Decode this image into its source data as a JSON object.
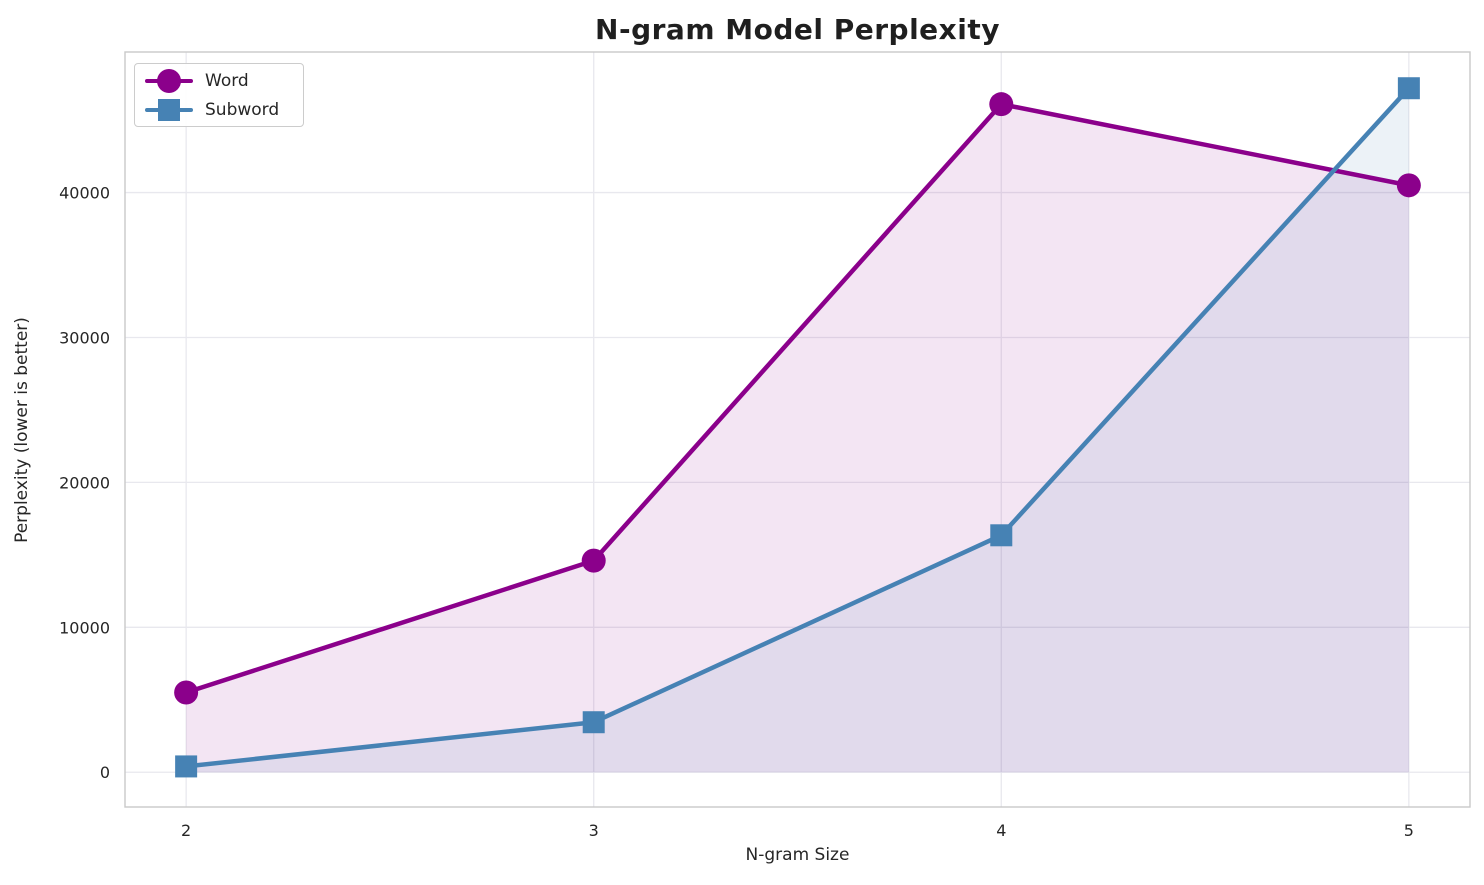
{
  "chart_data": {
    "type": "line",
    "title": "N-gram Model Perplexity",
    "xlabel": "N-gram Size",
    "ylabel": "Perplexity (lower is better)",
    "x": [
      2,
      3,
      4,
      5
    ],
    "series": [
      {
        "name": "Word",
        "marker": "circle",
        "color": "#8B008B",
        "values": [
          5500,
          14600,
          46100,
          40500
        ]
      },
      {
        "name": "Subword",
        "marker": "square",
        "color": "#4682B4",
        "values": [
          400,
          3450,
          16350,
          47200
        ]
      }
    ],
    "fill_to_zero": true,
    "fill_opacity": 0.1,
    "xticks": [
      "2",
      "3",
      "4",
      "5"
    ],
    "xtick_values": [
      2,
      3,
      4,
      5
    ],
    "yticks": [
      "0",
      "10000",
      "20000",
      "30000",
      "40000"
    ],
    "ytick_values": [
      0,
      10000,
      20000,
      30000,
      40000
    ],
    "xlim": [
      1.85,
      5.15
    ],
    "ylim": [
      -2400,
      49700
    ],
    "grid": true,
    "legend_position": "upper-left",
    "colors": {
      "text": "#262626",
      "grid": "#e8e8ee",
      "spine": "#c9c9c9",
      "background": "#ffffff"
    }
  }
}
